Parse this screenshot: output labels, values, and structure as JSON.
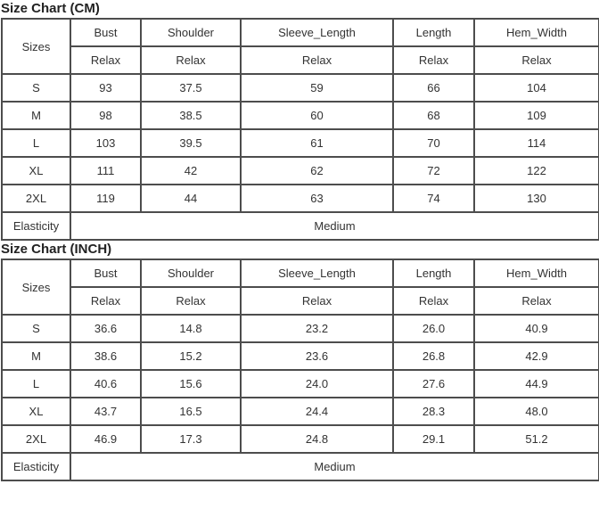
{
  "tables": [
    {
      "title": "Size Chart (CM)",
      "headers": [
        "Sizes",
        "Bust",
        "Shoulder",
        "Sleeve_Length",
        "Length",
        "Hem_Width"
      ],
      "subheaders": [
        "Relax",
        "Relax",
        "Relax",
        "Relax",
        "Relax"
      ],
      "rows": [
        [
          "S",
          "93",
          "37.5",
          "59",
          "66",
          "104"
        ],
        [
          "M",
          "98",
          "38.5",
          "60",
          "68",
          "109"
        ],
        [
          "L",
          "103",
          "39.5",
          "61",
          "70",
          "114"
        ],
        [
          "XL",
          "111",
          "42",
          "62",
          "72",
          "122"
        ],
        [
          "2XL",
          "119",
          "44",
          "63",
          "74",
          "130"
        ]
      ],
      "elasticity_label": "Elasticity",
      "elasticity_value": "Medium"
    },
    {
      "title": "Size Chart (INCH)",
      "headers": [
        "Sizes",
        "Bust",
        "Shoulder",
        "Sleeve_Length",
        "Length",
        "Hem_Width"
      ],
      "subheaders": [
        "Relax",
        "Relax",
        "Relax",
        "Relax",
        "Relax"
      ],
      "rows": [
        [
          "S",
          "36.6",
          "14.8",
          "23.2",
          "26.0",
          "40.9"
        ],
        [
          "M",
          "38.6",
          "15.2",
          "23.6",
          "26.8",
          "42.9"
        ],
        [
          "L",
          "40.6",
          "15.6",
          "24.0",
          "27.6",
          "44.9"
        ],
        [
          "XL",
          "43.7",
          "16.5",
          "24.4",
          "28.3",
          "48.0"
        ],
        [
          "2XL",
          "46.9",
          "17.3",
          "24.8",
          "29.1",
          "51.2"
        ]
      ],
      "elasticity_label": "Elasticity",
      "elasticity_value": "Medium"
    }
  ]
}
